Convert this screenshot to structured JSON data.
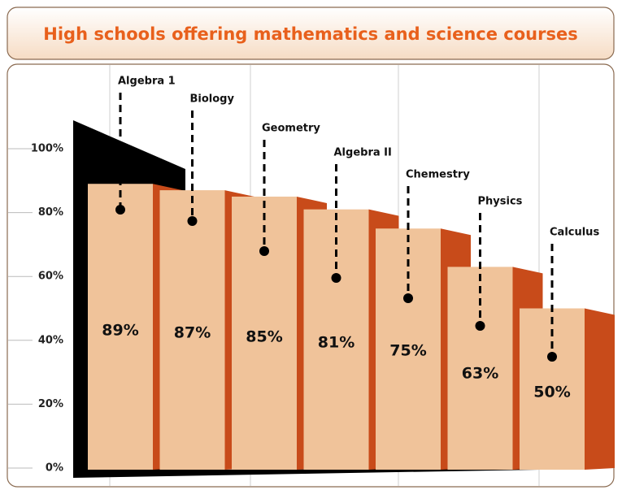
{
  "chart_data": {
    "type": "bar",
    "title": "High schools offering mathematics and science courses",
    "categories": [
      "Algebra 1",
      "Biology",
      "Geometry",
      "Algebra II",
      "Chemestry",
      "Physics",
      "Calculus"
    ],
    "values": [
      89,
      87,
      85,
      81,
      75,
      63,
      50
    ],
    "value_labels": [
      "89%",
      "87%",
      "85%",
      "81%",
      "75%",
      "63%",
      "50%"
    ],
    "color": "#f0c39a",
    "ylim": [
      0,
      100
    ],
    "yticks": [
      {
        "value": 0,
        "label": "0%"
      },
      {
        "value": 20,
        "label": "20%"
      },
      {
        "value": 40,
        "label": "40%"
      },
      {
        "value": 60,
        "label": "60%"
      },
      {
        "value": 80,
        "label": "80%"
      },
      {
        "value": 100,
        "label": "100%"
      }
    ],
    "grid": true
  }
}
